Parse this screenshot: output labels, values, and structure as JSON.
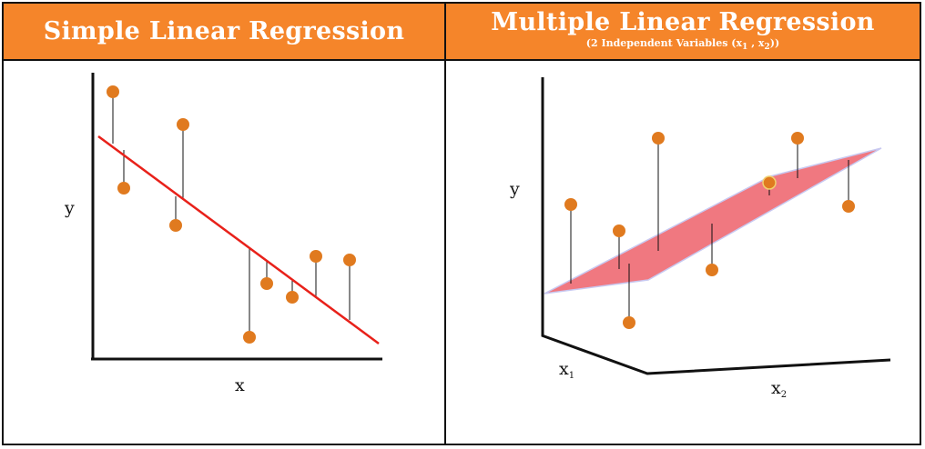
{
  "left_panel": {
    "title": "Simple Linear Regression",
    "x_label": "x",
    "y_label": "y"
  },
  "right_panel": {
    "title": "Multiple Linear Regression",
    "subtitle_pre": "(2 Independent Variables (x",
    "subtitle_sub1": "1",
    "subtitle_mid": " , x",
    "subtitle_sub2": "2",
    "subtitle_post": "))",
    "y_label": "y",
    "x1_label": "x",
    "x1_sub": "1",
    "x2_label": "x",
    "x2_sub": "2"
  },
  "colors": {
    "header": "#f5852a",
    "point": "#e07a1f",
    "regression_line": "#e8211a",
    "plane": "#f07880",
    "plane_edge": "#c8c8f0"
  }
}
